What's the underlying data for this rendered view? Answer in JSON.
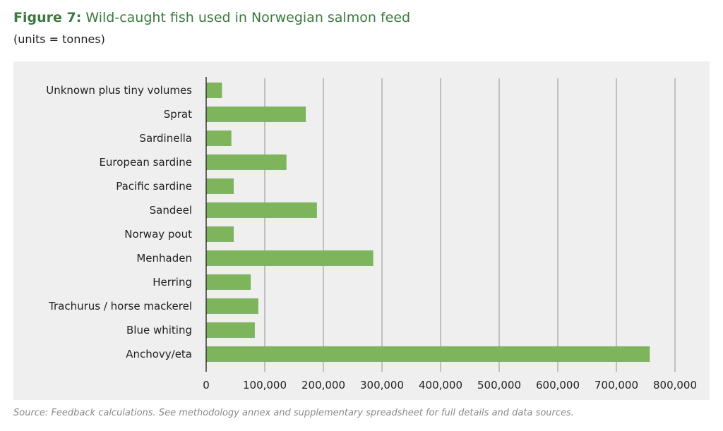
{
  "figure": {
    "label": "Figure 7:",
    "title": "Wild-caught fish used in Norwegian salmon feed",
    "subtitle": "(units = tonnes)",
    "source": "Source: Feedback calculations. See methodology annex and supplementary spreadsheet for full details and data sources."
  },
  "colors": {
    "bar": "#7db45c",
    "grid": "#a6a6a6",
    "panel": "#efefef",
    "title": "#3a7a3e"
  },
  "chart_data": {
    "type": "bar",
    "orientation": "horizontal",
    "categories": [
      "Unknown plus tiny volumes",
      "Sprat",
      "Sardinella",
      "European sardine",
      "Pacific sardine",
      "Sandeel",
      "Norway pout",
      "Menhaden",
      "Herring",
      "Trachurus / horse mackerel",
      "Blue whiting",
      "Anchovy/eta"
    ],
    "values": [
      27000,
      170000,
      43000,
      137000,
      47000,
      189000,
      47000,
      285000,
      76000,
      89000,
      83000,
      757000
    ],
    "xlim": [
      0,
      800000
    ],
    "xticks": [
      0,
      100000,
      200000,
      300000,
      400000,
      500000,
      600000,
      700000,
      800000
    ],
    "xtick_labels": [
      "0",
      "100,000",
      "200,000",
      "300,000",
      "400,000",
      "500,000",
      "600,000",
      "700,000",
      "800,000"
    ],
    "grid": "vertical",
    "legend": "none"
  }
}
